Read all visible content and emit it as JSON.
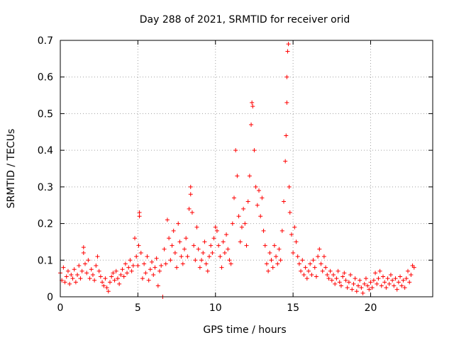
{
  "chart_data": {
    "type": "scatter",
    "title": "Day 288 of 2021, SRMTID for receiver orid",
    "xlabel": "GPS time / hours",
    "ylabel": "SRMTID / TECUs",
    "xlim": [
      0,
      24
    ],
    "ylim": [
      0,
      0.7
    ],
    "xticks": [
      0,
      5,
      10,
      15,
      20
    ],
    "yticks": [
      0,
      0.1,
      0.2,
      0.3,
      0.4,
      0.5,
      0.6,
      0.7
    ],
    "xtick_labels": [
      "0",
      "5",
      "10",
      "15",
      "20"
    ],
    "ytick_labels": [
      "0",
      "0.1",
      "0.2",
      "0.3",
      "0.4",
      "0.5",
      "0.6",
      "0.7"
    ],
    "grid": true,
    "marker": "+",
    "color": "#ff0000",
    "series": [
      {
        "name": "SRMTID",
        "points": [
          [
            0.0,
            0.065
          ],
          [
            0.1,
            0.045
          ],
          [
            0.2,
            0.08
          ],
          [
            0.3,
            0.04
          ],
          [
            0.4,
            0.055
          ],
          [
            0.5,
            0.07
          ],
          [
            0.6,
            0.035
          ],
          [
            0.7,
            0.06
          ],
          [
            0.8,
            0.05
          ],
          [
            0.9,
            0.075
          ],
          [
            1.0,
            0.04
          ],
          [
            1.1,
            0.06
          ],
          [
            1.2,
            0.085
          ],
          [
            1.3,
            0.05
          ],
          [
            1.4,
            0.07
          ],
          [
            1.5,
            0.135
          ],
          [
            1.5,
            0.12
          ],
          [
            1.6,
            0.09
          ],
          [
            1.7,
            0.065
          ],
          [
            1.8,
            0.1
          ],
          [
            1.9,
            0.05
          ],
          [
            2.0,
            0.075
          ],
          [
            2.1,
            0.06
          ],
          [
            2.2,
            0.045
          ],
          [
            2.3,
            0.085
          ],
          [
            2.4,
            0.11
          ],
          [
            2.5,
            0.07
          ],
          [
            2.6,
            0.055
          ],
          [
            2.7,
            0.04
          ],
          [
            2.8,
            0.03
          ],
          [
            2.9,
            0.05
          ],
          [
            3.0,
            0.025
          ],
          [
            3.1,
            0.015
          ],
          [
            3.2,
            0.04
          ],
          [
            3.3,
            0.055
          ],
          [
            3.4,
            0.065
          ],
          [
            3.5,
            0.045
          ],
          [
            3.6,
            0.07
          ],
          [
            3.7,
            0.05
          ],
          [
            3.8,
            0.035
          ],
          [
            3.9,
            0.06
          ],
          [
            4.0,
            0.075
          ],
          [
            4.1,
            0.055
          ],
          [
            4.2,
            0.09
          ],
          [
            4.3,
            0.065
          ],
          [
            4.4,
            0.08
          ],
          [
            4.5,
            0.1
          ],
          [
            4.6,
            0.07
          ],
          [
            4.7,
            0.085
          ],
          [
            4.8,
            0.16
          ],
          [
            4.9,
            0.11
          ],
          [
            5.0,
            0.085
          ],
          [
            5.05,
            0.14
          ],
          [
            5.1,
            0.22
          ],
          [
            5.1,
            0.23
          ],
          [
            5.2,
            0.12
          ],
          [
            5.3,
            0.05
          ],
          [
            5.4,
            0.09
          ],
          [
            5.5,
            0.065
          ],
          [
            5.6,
            0.11
          ],
          [
            5.7,
            0.045
          ],
          [
            5.8,
            0.075
          ],
          [
            5.9,
            0.095
          ],
          [
            6.0,
            0.06
          ],
          [
            6.1,
            0.08
          ],
          [
            6.2,
            0.105
          ],
          [
            6.3,
            0.03
          ],
          [
            6.4,
            0.07
          ],
          [
            6.5,
            0.085
          ],
          [
            6.6,
            0.0
          ],
          [
            6.7,
            0.13
          ],
          [
            6.8,
            0.09
          ],
          [
            6.9,
            0.21
          ],
          [
            7.0,
            0.16
          ],
          [
            7.1,
            0.1
          ],
          [
            7.2,
            0.14
          ],
          [
            7.3,
            0.18
          ],
          [
            7.4,
            0.12
          ],
          [
            7.5,
            0.08
          ],
          [
            7.6,
            0.2
          ],
          [
            7.7,
            0.15
          ],
          [
            7.8,
            0.11
          ],
          [
            7.9,
            0.09
          ],
          [
            8.0,
            0.13
          ],
          [
            8.1,
            0.16
          ],
          [
            8.2,
            0.11
          ],
          [
            8.3,
            0.24
          ],
          [
            8.4,
            0.3
          ],
          [
            8.4,
            0.28
          ],
          [
            8.5,
            0.23
          ],
          [
            8.6,
            0.14
          ],
          [
            8.7,
            0.1
          ],
          [
            8.8,
            0.19
          ],
          [
            8.9,
            0.13
          ],
          [
            9.0,
            0.08
          ],
          [
            9.1,
            0.1
          ],
          [
            9.2,
            0.12
          ],
          [
            9.3,
            0.15
          ],
          [
            9.4,
            0.09
          ],
          [
            9.5,
            0.07
          ],
          [
            9.6,
            0.11
          ],
          [
            9.7,
            0.14
          ],
          [
            9.8,
            0.12
          ],
          [
            9.9,
            0.16
          ],
          [
            10.0,
            0.19
          ],
          [
            10.1,
            0.18
          ],
          [
            10.2,
            0.14
          ],
          [
            10.3,
            0.11
          ],
          [
            10.4,
            0.08
          ],
          [
            10.5,
            0.15
          ],
          [
            10.6,
            0.12
          ],
          [
            10.7,
            0.17
          ],
          [
            10.8,
            0.13
          ],
          [
            10.9,
            0.1
          ],
          [
            11.0,
            0.09
          ],
          [
            11.1,
            0.2
          ],
          [
            11.2,
            0.27
          ],
          [
            11.3,
            0.4
          ],
          [
            11.4,
            0.33
          ],
          [
            11.5,
            0.22
          ],
          [
            11.6,
            0.15
          ],
          [
            11.7,
            0.19
          ],
          [
            11.8,
            0.24
          ],
          [
            11.9,
            0.2
          ],
          [
            12.0,
            0.14
          ],
          [
            12.1,
            0.26
          ],
          [
            12.2,
            0.33
          ],
          [
            12.3,
            0.47
          ],
          [
            12.35,
            0.53
          ],
          [
            12.4,
            0.52
          ],
          [
            12.5,
            0.4
          ],
          [
            12.6,
            0.3
          ],
          [
            12.7,
            0.25
          ],
          [
            12.8,
            0.29
          ],
          [
            12.9,
            0.22
          ],
          [
            13.0,
            0.27
          ],
          [
            13.1,
            0.18
          ],
          [
            13.2,
            0.14
          ],
          [
            13.3,
            0.09
          ],
          [
            13.4,
            0.07
          ],
          [
            13.5,
            0.12
          ],
          [
            13.6,
            0.1
          ],
          [
            13.7,
            0.08
          ],
          [
            13.8,
            0.14
          ],
          [
            13.9,
            0.11
          ],
          [
            14.0,
            0.09
          ],
          [
            14.1,
            0.13
          ],
          [
            14.2,
            0.1
          ],
          [
            14.3,
            0.18
          ],
          [
            14.4,
            0.26
          ],
          [
            14.5,
            0.37
          ],
          [
            14.55,
            0.44
          ],
          [
            14.6,
            0.53
          ],
          [
            14.6,
            0.6
          ],
          [
            14.65,
            0.67
          ],
          [
            14.7,
            0.69
          ],
          [
            14.75,
            0.3
          ],
          [
            14.8,
            0.23
          ],
          [
            14.9,
            0.17
          ],
          [
            15.0,
            0.12
          ],
          [
            15.1,
            0.19
          ],
          [
            15.2,
            0.15
          ],
          [
            15.3,
            0.11
          ],
          [
            15.4,
            0.09
          ],
          [
            15.5,
            0.07
          ],
          [
            15.6,
            0.1
          ],
          [
            15.7,
            0.06
          ],
          [
            15.8,
            0.08
          ],
          [
            15.9,
            0.05
          ],
          [
            16.0,
            0.07
          ],
          [
            16.1,
            0.09
          ],
          [
            16.2,
            0.06
          ],
          [
            16.3,
            0.1
          ],
          [
            16.4,
            0.08
          ],
          [
            16.5,
            0.055
          ],
          [
            16.6,
            0.11
          ],
          [
            16.7,
            0.13
          ],
          [
            16.8,
            0.09
          ],
          [
            16.9,
            0.07
          ],
          [
            17.0,
            0.11
          ],
          [
            17.1,
            0.08
          ],
          [
            17.2,
            0.06
          ],
          [
            17.3,
            0.05
          ],
          [
            17.4,
            0.07
          ],
          [
            17.5,
            0.045
          ],
          [
            17.6,
            0.06
          ],
          [
            17.7,
            0.035
          ],
          [
            17.8,
            0.05
          ],
          [
            17.9,
            0.07
          ],
          [
            18.0,
            0.04
          ],
          [
            18.1,
            0.03
          ],
          [
            18.2,
            0.055
          ],
          [
            18.3,
            0.065
          ],
          [
            18.4,
            0.045
          ],
          [
            18.5,
            0.025
          ],
          [
            18.6,
            0.04
          ],
          [
            18.7,
            0.06
          ],
          [
            18.8,
            0.02
          ],
          [
            18.9,
            0.035
          ],
          [
            19.0,
            0.05
          ],
          [
            19.1,
            0.015
          ],
          [
            19.2,
            0.03
          ],
          [
            19.3,
            0.045
          ],
          [
            19.4,
            0.025
          ],
          [
            19.5,
            0.01
          ],
          [
            19.6,
            0.035
          ],
          [
            19.7,
            0.05
          ],
          [
            19.8,
            0.03
          ],
          [
            19.9,
            0.02
          ],
          [
            20.0,
            0.04
          ],
          [
            20.1,
            0.025
          ],
          [
            20.2,
            0.045
          ],
          [
            20.3,
            0.065
          ],
          [
            20.4,
            0.035
          ],
          [
            20.5,
            0.05
          ],
          [
            20.6,
            0.07
          ],
          [
            20.7,
            0.03
          ],
          [
            20.8,
            0.055
          ],
          [
            20.9,
            0.04
          ],
          [
            21.0,
            0.025
          ],
          [
            21.1,
            0.05
          ],
          [
            21.2,
            0.035
          ],
          [
            21.3,
            0.06
          ],
          [
            21.4,
            0.045
          ],
          [
            21.5,
            0.03
          ],
          [
            21.6,
            0.05
          ],
          [
            21.7,
            0.02
          ],
          [
            21.8,
            0.04
          ],
          [
            21.9,
            0.055
          ],
          [
            22.0,
            0.03
          ],
          [
            22.1,
            0.045
          ],
          [
            22.2,
            0.025
          ],
          [
            22.3,
            0.05
          ],
          [
            22.4,
            0.07
          ],
          [
            22.5,
            0.04
          ],
          [
            22.6,
            0.06
          ],
          [
            22.7,
            0.085
          ],
          [
            22.8,
            0.08
          ]
        ]
      }
    ]
  }
}
